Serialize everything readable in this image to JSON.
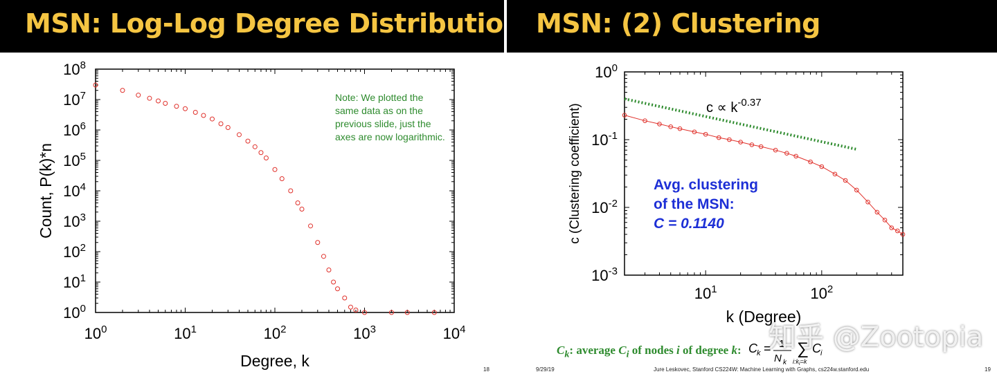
{
  "left_slide": {
    "title": "MSN: Log-Log Degree Distribution",
    "page_number": "18",
    "note": "Note: We plotted the same data as on the previous slide, just the axes are now logarithmic."
  },
  "right_slide": {
    "title": "MSN: (2) Clustering",
    "footer_date": "9/29/19",
    "footer_credit": "Jure Leskovec, Stanford CS224W: Machine Learning with Graphs, cs224w.stanford.edu",
    "page_number": "19",
    "avg_clustering": {
      "line1": "Avg. clustering",
      "line2": "of the MSN:",
      "line3": "C = 0.1140"
    },
    "formula": {
      "label_parts": [
        "C",
        "k",
        ": average ",
        "C",
        "i",
        " of nodes ",
        "i",
        " of degree ",
        "k",
        ":"
      ],
      "equation": "C_k = (1/N_k) Σ_{i:k_i=k} C_i"
    },
    "watermark": "知乎 @Zootopia"
  },
  "colors": {
    "title": "#f5c542",
    "title_bar": "#000000",
    "markers": "#e0302a",
    "fit_line": "#2e8b2e",
    "note": "#2e8b2e",
    "avg_text": "#1d2fd6"
  },
  "chart_data": [
    {
      "type": "scatter",
      "title": "",
      "xlabel": "Degree, k",
      "ylabel": "Count, P(k)*n",
      "xscale": "log",
      "yscale": "log",
      "xlim": [
        1,
        10000
      ],
      "ylim": [
        1,
        100000000
      ],
      "x_ticks": [
        "10^0",
        "10^1",
        "10^2",
        "10^3",
        "10^4"
      ],
      "y_ticks": [
        "10^0",
        "10^1",
        "10^2",
        "10^3",
        "10^4",
        "10^5",
        "10^6",
        "10^7",
        "10^8"
      ],
      "grid": false,
      "annotation": "Note: We plotted the same data as on the previous slide, just the axes are now logarithmic.",
      "series": [
        {
          "marker": "open circle",
          "color": "#e0302a",
          "x": [
            1,
            2,
            3,
            4,
            5,
            6,
            8,
            10,
            13,
            16,
            20,
            25,
            30,
            40,
            50,
            60,
            70,
            80,
            100,
            120,
            150,
            180,
            200,
            250,
            300,
            350,
            400,
            450,
            500,
            600,
            700,
            800,
            1000,
            2000,
            3000,
            6000
          ],
          "y": [
            30000000,
            20000000,
            14000000,
            11000000,
            9000000,
            7500000,
            6000000,
            5000000,
            3800000,
            3000000,
            2300000,
            1600000,
            1200000,
            700000,
            430000,
            280000,
            180000,
            120000,
            50000,
            25000,
            10000,
            4000,
            2500,
            700,
            200,
            70,
            25,
            10,
            6,
            3,
            1.5,
            1.2,
            1,
            1,
            1,
            1
          ]
        }
      ]
    },
    {
      "type": "scatter",
      "title": "",
      "xlabel": "k (Degree)",
      "ylabel": "c (Clustering coefficient)",
      "xscale": "log",
      "yscale": "log",
      "xlim": [
        2,
        500
      ],
      "ylim": [
        0.001,
        1
      ],
      "x_ticks": [
        "10^1",
        "10^2"
      ],
      "y_ticks": [
        "10^0",
        "10^-1",
        "10^-2",
        "10^-3"
      ],
      "grid": false,
      "annotation": "c ∝ k^-0.37",
      "series": [
        {
          "name": "",
          "marker": "open circle",
          "color": "#e0302a",
          "x": [
            2,
            3,
            4,
            5,
            6,
            8,
            10,
            13,
            16,
            20,
            25,
            30,
            40,
            50,
            60,
            80,
            100,
            130,
            160,
            200,
            250,
            300,
            350,
            400,
            450,
            500
          ],
          "y": [
            0.23,
            0.19,
            0.17,
            0.155,
            0.145,
            0.13,
            0.12,
            0.107,
            0.1,
            0.092,
            0.084,
            0.079,
            0.07,
            0.063,
            0.057,
            0.047,
            0.04,
            0.031,
            0.025,
            0.018,
            0.012,
            0.0085,
            0.0065,
            0.005,
            0.0045,
            0.004
          ]
        },
        {
          "name": "",
          "style": "dotted line",
          "color": "#2e8b2e",
          "x": [
            2,
            200
          ],
          "y": [
            0.4,
            0.072
          ]
        }
      ]
    }
  ]
}
